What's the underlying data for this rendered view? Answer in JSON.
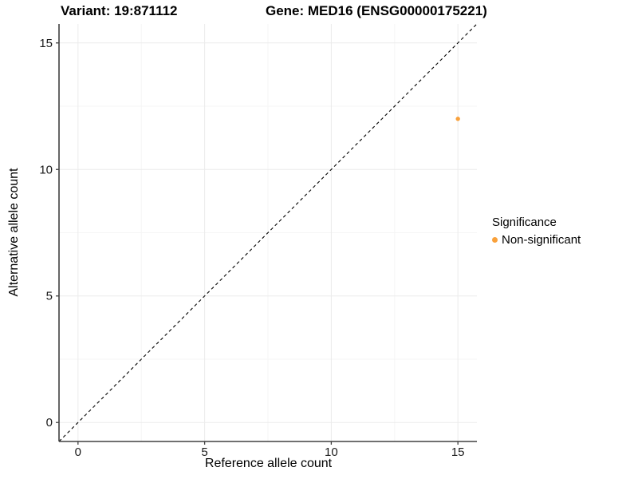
{
  "title": {
    "variant": "Variant: 19:871112",
    "gene": "Gene: MED16 (ENSG00000175221)"
  },
  "axes": {
    "xlabel": "Reference allele count",
    "ylabel": "Alternative allele count"
  },
  "legend": {
    "title": "Significance",
    "items": [
      {
        "label": "Non-significant",
        "color": "#F9A13B"
      }
    ]
  },
  "colors": {
    "point": "#F9A13B",
    "grid_major": "#EBEBEB",
    "grid_minor": "#F5F5F5",
    "axis_line": "#404040",
    "tick_label": "#1a1a1a",
    "reference_line": "#000000"
  },
  "chart_data": {
    "type": "scatter",
    "title": "Variant: 19:871112    Gene: MED16 (ENSG00000175221)",
    "xlabel": "Reference allele count",
    "ylabel": "Alternative allele count",
    "xlim": [
      -0.75,
      15.75
    ],
    "ylim": [
      -0.75,
      15.75
    ],
    "x_ticks": [
      0,
      5,
      10,
      15
    ],
    "y_ticks": [
      0,
      5,
      10,
      15
    ],
    "minor_ticks": [
      2.5,
      7.5,
      12.5
    ],
    "grid": true,
    "legend_position": "right",
    "series": [
      {
        "name": "Non-significant",
        "color": "#F9A13B",
        "points": [
          {
            "x": 15,
            "y": 12
          }
        ]
      }
    ],
    "reference_line": {
      "type": "identity",
      "slope": 1,
      "intercept": 0,
      "style": "dashed",
      "color": "#000000"
    }
  }
}
